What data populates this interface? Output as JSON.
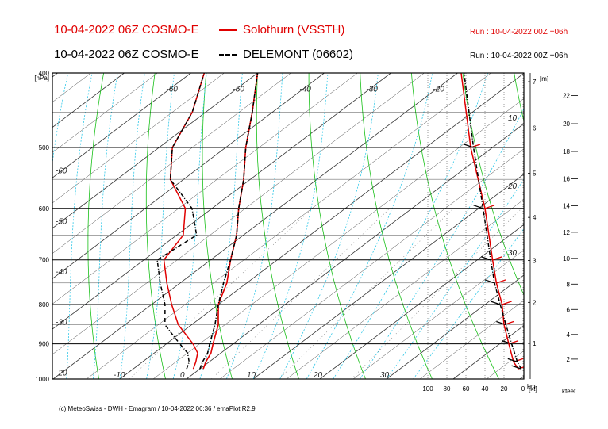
{
  "header": {
    "line1_left": "10-04-2022 06Z COSMO-E",
    "line1_legend": "Solothurn (VSSTH)",
    "line1_run": "Run : 10-04-2022 00Z +06h",
    "line2_left": "10-04-2022 06Z COSMO-E",
    "line2_legend": "DELEMONT (06602)",
    "line2_run": "Run : 10-04-2022 00Z +06h"
  },
  "footer": "(c) MeteoSwiss - DWH - Emagram / 10-04-2022  06:36 / emaPlot R2.9",
  "colors": {
    "solothurn": "#e00000",
    "delemont": "#000000",
    "dry_adiabat": "#18c018",
    "moist_adiabat": "#30c8e8",
    "isotherm": "#333333"
  },
  "chart_data": {
    "type": "line",
    "diagram": "emagram (skew-T)",
    "y_pressure": {
      "label": "[hPa]",
      "ticks": [
        400,
        500,
        600,
        700,
        800,
        900,
        1000
      ],
      "range": [
        1000,
        400
      ],
      "scale": "log"
    },
    "height_km": {
      "label": "[m]",
      "ticks": [
        1,
        2,
        3,
        4,
        5,
        6,
        7
      ],
      "bottom_label": "km"
    },
    "height_kfeet": {
      "ticks": [
        2,
        4,
        6,
        8,
        10,
        12,
        14,
        16,
        18,
        20,
        22
      ],
      "bottom_label": "kfeet"
    },
    "wind_axis": {
      "ticks": [
        "100",
        "80",
        "60",
        "40",
        "20",
        "0"
      ],
      "unit": "[kt]"
    },
    "temperature_labels_bottom": [
      "-10",
      "0",
      "10",
      "20",
      "30"
    ],
    "temperature_labels_top": [
      "-60",
      "-50",
      "-40",
      "-30",
      "-20"
    ],
    "temperature_labels_left": [
      "-60",
      "-50",
      "-40",
      "-30",
      "-20"
    ],
    "mixing_ratio_labels": [
      "10",
      "20",
      "30"
    ],
    "series": [
      {
        "name": "Solothurn (VSSTH)",
        "style": "solid",
        "temperature": [
          [
            970,
            0.5
          ],
          [
            950,
            -0.5
          ],
          [
            925,
            -1.5
          ],
          [
            900,
            -3
          ],
          [
            850,
            -6
          ],
          [
            800,
            -10
          ],
          [
            750,
            -13
          ],
          [
            700,
            -17
          ],
          [
            650,
            -21
          ],
          [
            600,
            -26
          ],
          [
            550,
            -31
          ],
          [
            500,
            -37
          ],
          [
            450,
            -43
          ],
          [
            400,
            -50
          ]
        ],
        "dewpoint": [
          [
            970,
            -1
          ],
          [
            950,
            -2
          ],
          [
            925,
            -3.5
          ],
          [
            900,
            -6
          ],
          [
            850,
            -12
          ],
          [
            800,
            -17
          ],
          [
            750,
            -22
          ],
          [
            700,
            -27
          ],
          [
            650,
            -29
          ],
          [
            600,
            -34
          ],
          [
            550,
            -42
          ],
          [
            500,
            -48
          ],
          [
            450,
            -52
          ],
          [
            400,
            -58
          ]
        ],
        "wind_speed_profile": [
          [
            970,
            5
          ],
          [
            950,
            10
          ],
          [
            900,
            15
          ],
          [
            850,
            20
          ],
          [
            800,
            22
          ],
          [
            750,
            28
          ],
          [
            700,
            32
          ],
          [
            600,
            40
          ],
          [
            500,
            55
          ],
          [
            400,
            65
          ]
        ]
      },
      {
        "name": "DELEMONT (06602)",
        "style": "dashdot",
        "temperature": [
          [
            970,
            0
          ],
          [
            950,
            -1
          ],
          [
            925,
            -2
          ],
          [
            900,
            -3.5
          ],
          [
            850,
            -6.5
          ],
          [
            800,
            -10
          ],
          [
            750,
            -13.5
          ],
          [
            700,
            -17
          ],
          [
            650,
            -21
          ],
          [
            600,
            -26
          ],
          [
            550,
            -31
          ],
          [
            500,
            -37
          ],
          [
            450,
            -43
          ],
          [
            400,
            -50
          ]
        ],
        "dewpoint": [
          [
            970,
            -2
          ],
          [
            950,
            -3
          ],
          [
            925,
            -5
          ],
          [
            900,
            -8
          ],
          [
            850,
            -14
          ],
          [
            800,
            -18
          ],
          [
            750,
            -23
          ],
          [
            700,
            -28
          ],
          [
            650,
            -27
          ],
          [
            600,
            -33
          ],
          [
            550,
            -42
          ],
          [
            500,
            -48
          ],
          [
            450,
            -52
          ],
          [
            400,
            -58
          ]
        ],
        "wind_speed_profile": [
          [
            970,
            2
          ],
          [
            950,
            6
          ],
          [
            900,
            12
          ],
          [
            850,
            18
          ],
          [
            800,
            24
          ],
          [
            750,
            30
          ],
          [
            700,
            34
          ],
          [
            600,
            42
          ],
          [
            500,
            52
          ],
          [
            400,
            62
          ]
        ]
      }
    ],
    "grid": true
  }
}
